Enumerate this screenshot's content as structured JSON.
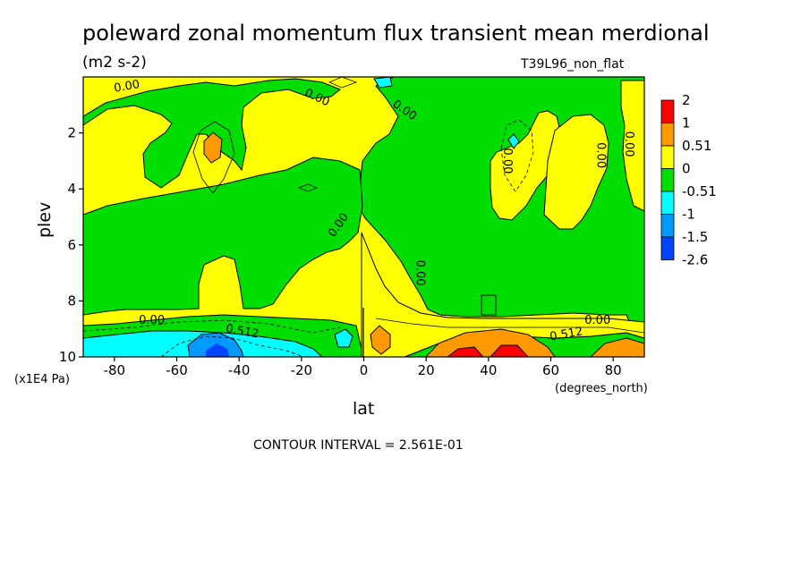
{
  "chart_data": {
    "type": "heatmap",
    "title": "poleward zonal momentum flux transient mean merdional",
    "units": "(m2 s-2)",
    "run_label": "T39L96_non_flat",
    "xlabel": "lat",
    "xunits": "(degrees_north)",
    "ylabel": "plev",
    "yunits": "(x1E4 Pa)",
    "xlim": [
      -90,
      90
    ],
    "ylim": [
      10,
      0
    ],
    "xticks": [
      -80,
      -60,
      -40,
      -20,
      0,
      20,
      40,
      60,
      80
    ],
    "yticks": [
      2,
      4,
      6,
      8,
      10
    ],
    "contour_interval": "CONTOUR INTERVAL = 2.561E-01",
    "colorbar": {
      "colors": [
        "#ff0000",
        "#ff9900",
        "#ffff00",
        "#00dd00",
        "#00ffff",
        "#0099ff",
        "#0044ff"
      ],
      "labels": [
        "2",
        "1",
        "0.51",
        "0",
        "-0.51",
        "-1",
        "-1.5",
        "-2.6"
      ]
    },
    "contour_labels": [
      {
        "text": "0.00",
        "lat": -76,
        "plev": 0.35,
        "angle": -10
      },
      {
        "text": "0.00",
        "lat": -15,
        "plev": 0.75,
        "angle": 25
      },
      {
        "text": "0.00",
        "lat": 13,
        "plev": 1.2,
        "angle": 35
      },
      {
        "text": "0.00",
        "lat": 46,
        "plev": 3.0,
        "angle": 90
      },
      {
        "text": "0.00",
        "lat": 76,
        "plev": 2.8,
        "angle": 90
      },
      {
        "text": "0.00",
        "lat": 85,
        "plev": 2.4,
        "angle": 90
      },
      {
        "text": "0.00",
        "lat": -8,
        "plev": 5.3,
        "angle": -55
      },
      {
        "text": "0.00",
        "lat": 18,
        "plev": 7.0,
        "angle": 90
      },
      {
        "text": "0.00",
        "lat": -68,
        "plev": 8.7,
        "angle": 0
      },
      {
        "text": "0.512",
        "lat": -39,
        "plev": 9.1,
        "angle": 10
      },
      {
        "text": "0.00",
        "lat": 75,
        "plev": 8.7,
        "angle": 0
      },
      {
        "text": "0.512",
        "lat": 65,
        "plev": 9.2,
        "angle": -10
      }
    ],
    "regions": [
      {
        "level": "0 to 0.51",
        "color": "#ffff00",
        "description": "background"
      },
      {
        "level": "-0.51 to 0",
        "color": "#00dd00"
      },
      {
        "level": "0.51 to 1",
        "color": "#ff9900"
      },
      {
        "level": "-1 to -0.51",
        "color": "#00ffff"
      },
      {
        "level": "-1.5 to -1",
        "color": "#0099ff"
      },
      {
        "level": "1 to 2",
        "color": "#ff0000"
      }
    ]
  }
}
